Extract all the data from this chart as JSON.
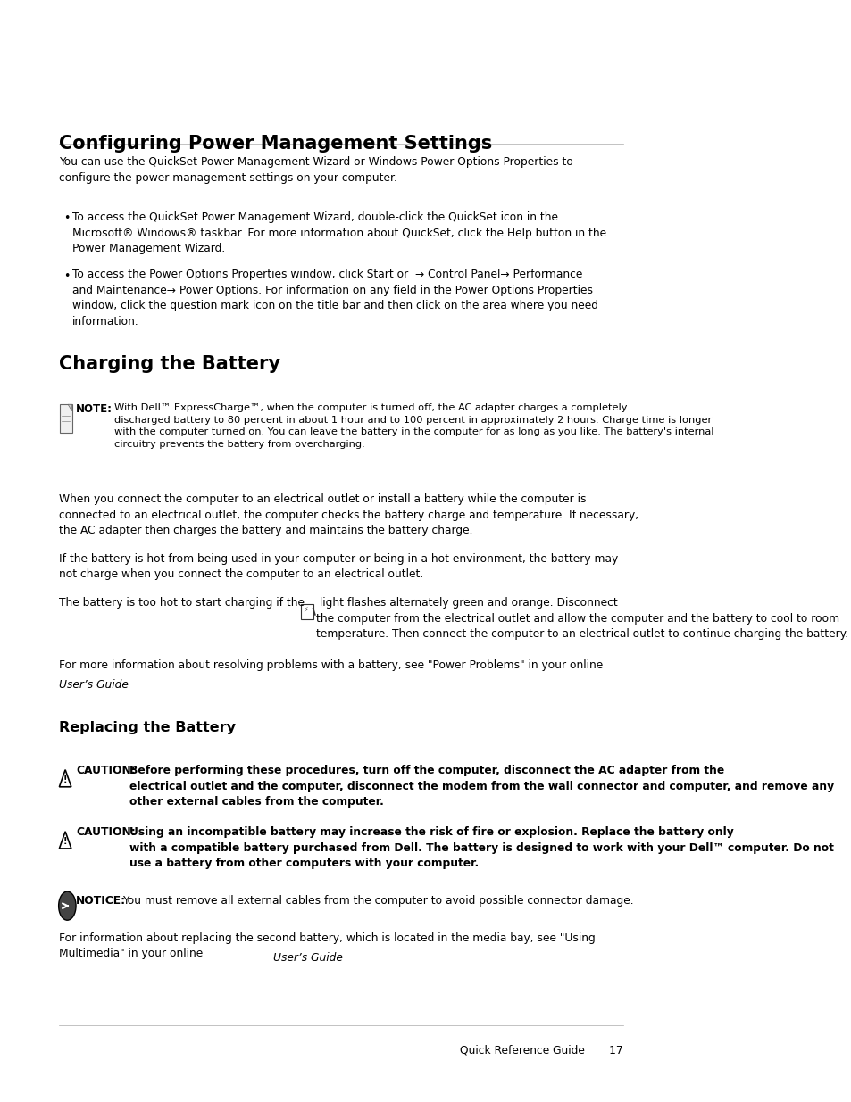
{
  "bg_color": "#ffffff",
  "text_color": "#000000",
  "lm": 0.088,
  "rm": 0.935,
  "section1_title": "Configuring Power Management Settings",
  "section1_intro": "You can use the QuickSet Power Management Wizard or Windows Power Options Properties to\nconfigure the power management settings on your computer.",
  "bullet1": "To access the QuickSet Power Management Wizard, double-click the QuickSet icon in the\nMicrosoft® Windows® taskbar. For more information about QuickSet, click the Help button in the\nPower Management Wizard.",
  "bullet2": "To access the Power Options Properties window, click Start or  → Control Panel→ Performance\nand Maintenance→ Power Options. For information on any field in the Power Options Properties\nwindow, click the question mark icon on the title bar and then click on the area where you need\ninformation.",
  "section2_title": "Charging the Battery",
  "note_bold": "NOTE:",
  "note_text": "With Dell™ ExpressCharge™, when the computer is turned off, the AC adapter charges a completely\ndischarged battery to 80 percent in about 1 hour and to 100 percent in approximately 2 hours. Charge time is longer\nwith the computer turned on. You can leave the battery in the computer for as long as you like. The battery's internal\ncircuitry prevents the battery from overcharging.",
  "para1": "When you connect the computer to an electrical outlet or install a battery while the computer is\nconnected to an electrical outlet, the computer checks the battery charge and temperature. If necessary,\nthe AC adapter then charges the battery and maintains the battery charge.",
  "para2": "If the battery is hot from being used in your computer or being in a hot environment, the battery may\nnot charge when you connect the computer to an electrical outlet.",
  "para3a": "The battery is too hot to start charging if the ",
  "para3b": " light flashes alternately green and orange. Disconnect\nthe computer from the electrical outlet and allow the computer and the battery to cool to room\ntemperature. Then connect the computer to an electrical outlet to continue charging the battery.",
  "para4a": "For more information about resolving problems with a battery, see \"Power Problems\" in your online",
  "para4b": "User’s Guide",
  "para4c": ".",
  "section3_title": "Replacing the Battery",
  "caution1_label": "CAUTION:",
  "caution1_text": " Before performing these procedures, turn off the computer, disconnect the AC adapter from the\nelectrical outlet and the computer, disconnect the modem from the wall connector and computer, and remove any\nother external cables from the computer.",
  "caution2_label": "CAUTION:",
  "caution2_text": " Using an incompatible battery may increase the risk of fire or explosion. Replace the battery only\nwith a compatible battery purchased from Dell. The battery is designed to work with your Dell™ computer. Do not\nuse a battery from other computers with your computer.",
  "notice_label": "NOTICE:",
  "notice_text": " You must remove all external cables from the computer to avoid possible connector damage.",
  "para5a": "For information about replacing the second battery, which is located in the media bay, see \"Using\nMultimedia\" in your online ",
  "para5b": "User’s Guide",
  "para5c": ".",
  "footer_left": "Quick Reference Guide",
  "footer_sep": "   |   ",
  "footer_page": "17"
}
